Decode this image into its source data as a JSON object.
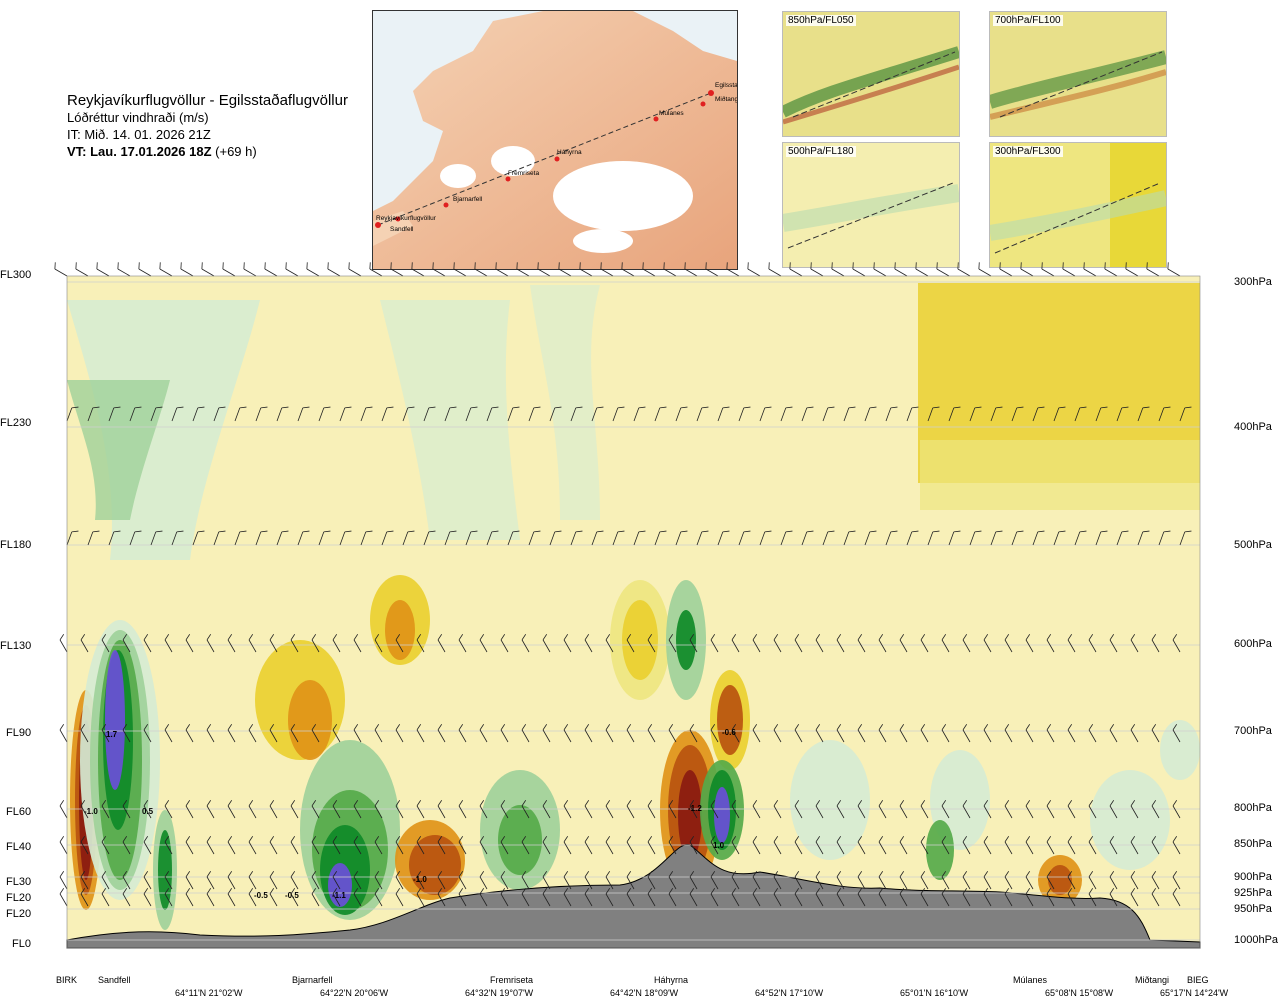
{
  "header": {
    "route": "Reykjavíkurflugvöllur - Egilsstaðaflugvöllur",
    "variable": "Lóðréttur vindhraði (m/s)",
    "issue_time": "IT: Mið. 14. 01. 2026 21Z",
    "valid_time_bold": "VT: Lau. 17.01.2026 18Z",
    "valid_time_offset": "(+69 h)"
  },
  "map": {
    "stations": [
      "Reykjavíkurflugvöllur",
      "Sandfell",
      "Bjarnarfell",
      "Fremriseta",
      "Háhyrna",
      "Múlanes",
      "Miðtangi",
      "Egilsstaðir"
    ]
  },
  "thumbnails": [
    {
      "label": "850hPa/FL050"
    },
    {
      "label": "700hPa/FL100"
    },
    {
      "label": "500hPa/FL180"
    },
    {
      "label": "300hPa/FL300"
    }
  ],
  "chart_data": {
    "type": "heatmap",
    "title": "Lóðréttur vindhraði (m/s)",
    "flight_levels": [
      "FL300",
      "FL230",
      "FL180",
      "FL130",
      "FL90",
      "FL60",
      "FL40",
      "FL30",
      "FL20",
      "FL20",
      "FL0"
    ],
    "pressure_levels": [
      "300hPa",
      "400hPa",
      "500hPa",
      "600hPa",
      "700hPa",
      "800hPa",
      "850hPa",
      "900hPa",
      "925hPa",
      "950hPa",
      "1000hPa"
    ],
    "route_points": [
      "BIRK",
      "Sandfell",
      "Bjarnarfell",
      "Fremriseta",
      "Háhyrna",
      "Múlanes",
      "Miðtangi",
      "BIEG"
    ],
    "coordinates": [
      "64°11'N 21°02'W",
      "64°22'N 20°06'W",
      "64°32'N 19°07'W",
      "64°42'N 18°09'W",
      "64°52'N 17°10'W",
      "65°01'N 16°10'W",
      "65°08'N 15°08'W",
      "65°17'N 14°24'W"
    ],
    "value_labels": [
      "1.7",
      "-1.0",
      "0.5",
      "-0.5",
      "-0.5",
      "-1.1",
      "-1.0",
      "-0.6",
      "-1.2",
      "1.0"
    ],
    "colors": {
      "strong_up": "#6a4fd8",
      "up3": "#0f8a28",
      "up2": "#56aa4a",
      "up1": "#9fd19a",
      "up0": "#d6ecd2",
      "down0": "#f8f0b8",
      "down1": "#eee680",
      "down2": "#ead030",
      "down3": "#e09418",
      "down4": "#b8540f",
      "strong_down": "#8a1a10",
      "terrain": "#808080"
    }
  }
}
